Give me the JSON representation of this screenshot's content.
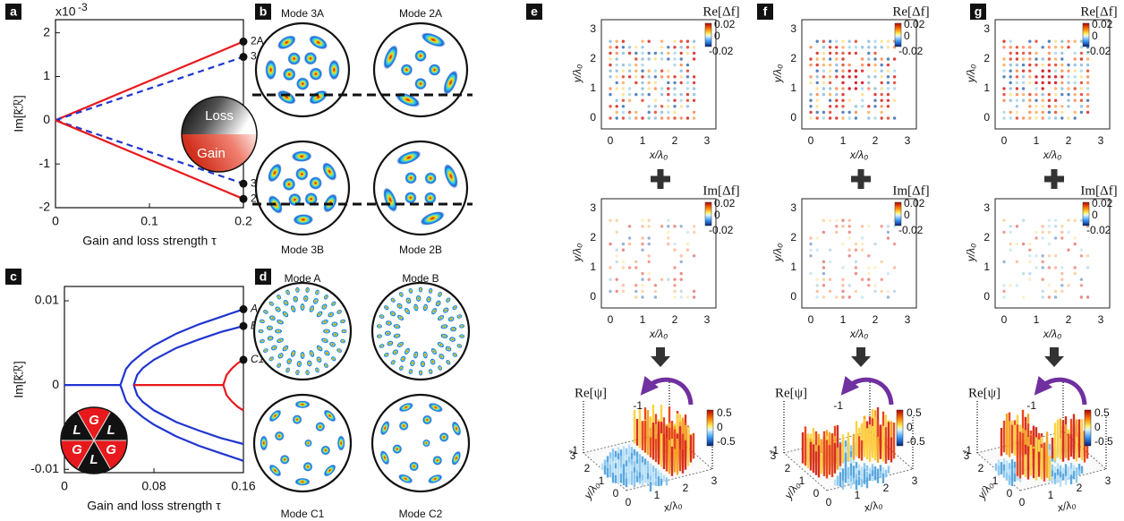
{
  "panels": [
    {
      "label": "a",
      "scale_base": "x10",
      "scale_exponent": "-3",
      "ylabel": "Im[k̃ℛ]",
      "xlabel": "Gain and loss strength τ",
      "xlim": [
        0,
        0.2
      ],
      "ylim": [
        -2,
        2.3
      ],
      "xticks": [
        0,
        0.1,
        0.2
      ],
      "yticks": [
        2,
        1,
        0,
        -1,
        -2
      ],
      "series": [
        {
          "name": "2A",
          "color": "#e8191c",
          "dashed": false,
          "x": [
            0,
            0.2
          ],
          "values": [
            0,
            1.8
          ]
        },
        {
          "name": "3A",
          "color": "#2035d0",
          "dashed": true,
          "x": [
            0,
            0.2
          ],
          "values": [
            0,
            1.45
          ]
        },
        {
          "name": "3B",
          "color": "#2035d0",
          "dashed": true,
          "x": [
            0,
            0.2
          ],
          "values": [
            0,
            -1.45
          ]
        },
        {
          "name": "2B",
          "color": "#e8191c",
          "dashed": false,
          "x": [
            0,
            0.2
          ],
          "values": [
            0,
            -1.8
          ]
        }
      ],
      "inset": [
        "Loss",
        "Gain"
      ]
    },
    {
      "label": "b",
      "modes": [
        "Mode 3A",
        "Mode 2A",
        "Mode 3B",
        "Mode 2B"
      ]
    },
    {
      "label": "c",
      "ylabel": "Im[k̃ℛ]",
      "xlabel": "Gain and loss strength τ",
      "xlim": [
        0,
        0.16
      ],
      "ylim": [
        -0.0104,
        0.0117
      ],
      "xticks": [
        0,
        0.08,
        0.16
      ],
      "yticks": [
        0.01,
        0,
        -0.01
      ],
      "series": [
        {
          "color": "#2035d0",
          "x": [
            0,
            0.05
          ],
          "values": [
            0,
            0
          ]
        },
        {
          "color": "#2035d0",
          "x": [
            0.16,
            0.14,
            0.12,
            0.1,
            0.08,
            0.07,
            0.06,
            0.055,
            0.05,
            0.055,
            0.06,
            0.07,
            0.08,
            0.1,
            0.12,
            0.14,
            0.16
          ],
          "values": [
            0.009,
            0.0081,
            0.0072,
            0.0061,
            0.0047,
            0.0038,
            0.0027,
            0.0019,
            0,
            -0.0019,
            -0.0027,
            -0.0038,
            -0.0047,
            -0.0061,
            -0.0072,
            -0.0081,
            -0.009
          ]
        },
        {
          "color": "#2035d0",
          "x": [
            0.16,
            0.14,
            0.12,
            0.1,
            0.08,
            0.07,
            0.065,
            0.062,
            0.065,
            0.07,
            0.08,
            0.1,
            0.12,
            0.14,
            0.16
          ],
          "values": [
            0.007,
            0.0063,
            0.0054,
            0.0044,
            0.003,
            0.002,
            0.0012,
            0,
            -0.0012,
            -0.002,
            -0.003,
            -0.0044,
            -0.0054,
            -0.0063,
            -0.007
          ]
        },
        {
          "color": "#e8191c",
          "x": [
            0.062,
            0.142
          ],
          "values": [
            0,
            0
          ]
        },
        {
          "color": "#e8191c",
          "x": [
            0.16,
            0.155,
            0.15,
            0.145,
            0.142,
            0.145,
            0.15,
            0.155,
            0.16
          ],
          "values": [
            0.003,
            0.0026,
            0.002,
            0.0012,
            0,
            -0.0012,
            -0.002,
            -0.0026,
            -0.003
          ]
        }
      ],
      "points": [
        {
          "label": "A",
          "x": 0.16,
          "value": 0.009
        },
        {
          "label": "B",
          "x": 0.16,
          "value": 0.007
        },
        {
          "label": "C1,C2",
          "x": 0.16,
          "value": 0.003
        }
      ],
      "inset": [
        "G",
        "L",
        "G",
        "L",
        "G",
        "L"
      ]
    },
    {
      "label": "d",
      "modes": [
        "Mode A",
        "Mode B",
        "Mode C1",
        "Mode C2"
      ]
    },
    {
      "label": "e",
      "re_title": "Re[Δf]",
      "im_title": "Im[Δf]",
      "psi_title": "Re[ψ]",
      "xlabel": "x/λ₀",
      "ylabel": "y/λ₀",
      "ticks": [
        0,
        1,
        2,
        3
      ],
      "cbar_ticks": [
        0.02,
        0,
        -0.02
      ],
      "psi_cbar_ticks": [
        0.5,
        0,
        -0.5
      ],
      "z_ticks": [
        -1
      ]
    },
    {
      "label": "f",
      "re_title": "Re[Δf]",
      "im_title": "Im[Δf]",
      "psi_title": "Re[ψ]",
      "xlabel": "x/λ₀",
      "ylabel": "y/λ₀",
      "ticks": [
        0,
        1,
        2,
        3
      ],
      "cbar_ticks": [
        0.02,
        0,
        -0.02
      ],
      "psi_cbar_ticks": [
        0.5,
        0,
        -0.5
      ],
      "z_ticks": [
        -1
      ]
    },
    {
      "label": "g",
      "re_title": "Re[Δf]",
      "im_title": "Im[Δf]",
      "psi_title": "Re[ψ]",
      "xlabel": "x/λ₀",
      "ylabel": "y/λ₀",
      "ticks": [
        0,
        1,
        2,
        3
      ],
      "cbar_ticks": [
        0.02,
        0,
        -0.02
      ],
      "psi_cbar_ticks": [
        0.5,
        0,
        -0.5
      ],
      "z_ticks": [
        -1
      ]
    }
  ]
}
